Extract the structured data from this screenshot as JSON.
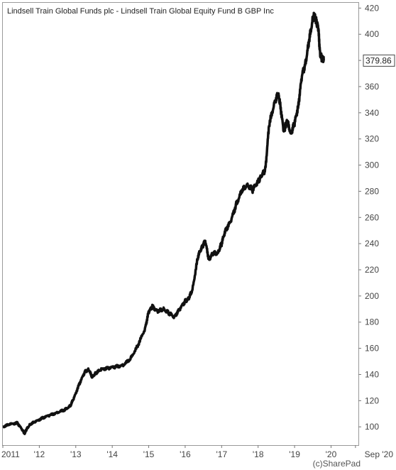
{
  "chart_data": {
    "type": "line",
    "title": "Lindsell Train Global Funds plc - Lindsell Train Global Equity Fund B GBP Inc",
    "credit": "(c)SharePad",
    "last_value_label": "379.86",
    "xlabel": "",
    "ylabel": "",
    "ylim": [
      86,
      424
    ],
    "xlim": [
      2011.0,
      2020.75
    ],
    "grid": false,
    "legend": "none",
    "line_color": "#111111",
    "y_ticks": [
      100,
      120,
      140,
      160,
      180,
      200,
      220,
      240,
      260,
      280,
      300,
      320,
      340,
      360,
      380,
      400,
      420
    ],
    "x_ticks": [
      {
        "label": "2011",
        "value": 2011.0
      },
      {
        "label": "'12",
        "value": 2012.0
      },
      {
        "label": "'13",
        "value": 2013.0
      },
      {
        "label": "'14",
        "value": 2014.0
      },
      {
        "label": "'15",
        "value": 2015.0
      },
      {
        "label": "'16",
        "value": 2016.0
      },
      {
        "label": "'17",
        "value": 2017.0
      },
      {
        "label": "'18",
        "value": 2018.0
      },
      {
        "label": "'19",
        "value": 2019.0
      },
      {
        "label": "'20",
        "value": 2020.0
      },
      {
        "label": "Sep '20",
        "value": 2020.67
      }
    ],
    "series": [
      {
        "x": [
          2011.0,
          2011.2,
          2011.4,
          2011.55,
          2011.6,
          2011.65,
          2011.75,
          2011.9,
          2012.1,
          2012.3,
          2012.5,
          2012.7,
          2012.85,
          2012.95,
          2013.1,
          2013.25,
          2013.35,
          2013.45,
          2013.55,
          2013.7,
          2013.9,
          2014.1,
          2014.3,
          2014.5,
          2014.7,
          2014.9,
          2015.0,
          2015.1,
          2015.25,
          2015.4,
          2015.55,
          2015.7,
          2015.85,
          2016.0,
          2016.1,
          2016.2,
          2016.35,
          2016.45,
          2016.55,
          2016.65,
          2016.75,
          2016.9,
          2017.0,
          2017.1,
          2017.25,
          2017.4,
          2017.55,
          2017.7,
          2017.85,
          2018.0,
          2018.1,
          2018.2,
          2018.3,
          2018.45,
          2018.55,
          2018.6,
          2018.7,
          2018.75,
          2018.8,
          2018.9,
          2019.0,
          2019.1,
          2019.2,
          2019.3,
          2019.4,
          2019.5,
          2019.55,
          2019.6,
          2019.65,
          2019.7,
          2019.75,
          2019.8
        ],
        "values": [
          100,
          102,
          103,
          97,
          95,
          98,
          102,
          104,
          107,
          109,
          111,
          113,
          116,
          122,
          133,
          142,
          144,
          138,
          141,
          144,
          145,
          146,
          147,
          152,
          162,
          175,
          188,
          192,
          188,
          190,
          187,
          184,
          190,
          196,
          198,
          205,
          230,
          237,
          242,
          228,
          232,
          233,
          240,
          250,
          257,
          270,
          280,
          285,
          281,
          288,
          292,
          297,
          330,
          348,
          354,
          348,
          326,
          330,
          333,
          324,
          332,
          345,
          368,
          378,
          395,
          412,
          414,
          410,
          405,
          385,
          381,
          379.86
        ]
      }
    ]
  }
}
